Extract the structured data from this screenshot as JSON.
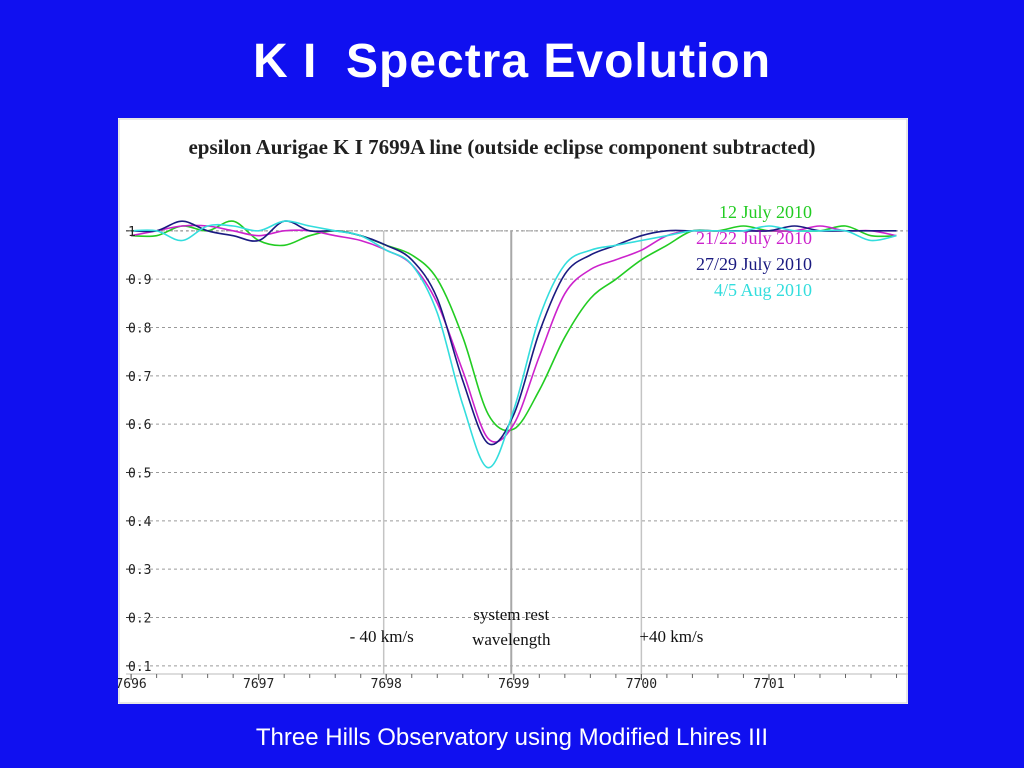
{
  "slide": {
    "title": "K I  Spectra Evolution",
    "footer": "Three Hills Observatory using Modified Lhires III"
  },
  "chart_data": {
    "type": "line",
    "title": "epsilon Aurigae K I 7699A line (outside eclipse component subtracted)",
    "xlabel": "",
    "ylabel": "",
    "xlim": [
      7695.96,
      7702.09
    ],
    "ylim": [
      0.05,
      1.13
    ],
    "x_ticks": [
      7696,
      7697,
      7698,
      7699,
      7700,
      7701
    ],
    "y_ticks": [
      0.1,
      0.2,
      0.3,
      0.4,
      0.5,
      0.6,
      0.7,
      0.8,
      0.9,
      1
    ],
    "grid": "horizontal dashed",
    "legend_position": "top-right",
    "reference_lines": [
      {
        "x": 7697.98,
        "label": "- 40 km/s"
      },
      {
        "x": 7698.98,
        "label_lines": [
          "system rest",
          "wavelength"
        ]
      },
      {
        "x": 7700.0,
        "label": "+40 km/s"
      }
    ],
    "series": [
      {
        "name": "12 July 2010",
        "color": "#22cc22",
        "x": [
          7696.0,
          7696.2,
          7696.4,
          7696.6,
          7696.8,
          7697.0,
          7697.2,
          7697.4,
          7697.6,
          7697.8,
          7698.0,
          7698.2,
          7698.4,
          7698.6,
          7698.8,
          7699.0,
          7699.2,
          7699.4,
          7699.6,
          7699.8,
          7700.0,
          7700.2,
          7700.4,
          7700.6,
          7700.8,
          7701.0,
          7701.2,
          7701.4,
          7701.6,
          7701.8,
          7702.0
        ],
        "values": [
          0.99,
          0.99,
          1.01,
          1.0,
          1.02,
          0.98,
          0.97,
          0.99,
          1.0,
          0.99,
          0.97,
          0.95,
          0.9,
          0.78,
          0.62,
          0.59,
          0.67,
          0.78,
          0.86,
          0.9,
          0.94,
          0.97,
          1.0,
          1.0,
          1.01,
          1.0,
          1.0,
          1.0,
          1.01,
          0.99,
          0.99
        ]
      },
      {
        "name": "21/22 July 2010",
        "color": "#cc22cc",
        "x": [
          7696.0,
          7696.2,
          7696.4,
          7696.6,
          7696.8,
          7697.0,
          7697.2,
          7697.4,
          7697.6,
          7697.8,
          7698.0,
          7698.2,
          7698.4,
          7698.6,
          7698.8,
          7699.0,
          7699.2,
          7699.4,
          7699.6,
          7699.8,
          7700.0,
          7700.2,
          7700.4,
          7700.6,
          7700.8,
          7701.0,
          7701.2,
          7701.4,
          7701.6,
          7701.8,
          7702.0
        ],
        "values": [
          0.99,
          1.0,
          1.01,
          1.01,
          1.0,
          0.99,
          1.0,
          1.0,
          0.99,
          0.98,
          0.96,
          0.93,
          0.85,
          0.71,
          0.57,
          0.6,
          0.74,
          0.87,
          0.92,
          0.94,
          0.96,
          0.99,
          1.0,
          1.0,
          1.0,
          1.0,
          1.0,
          1.01,
          1.0,
          1.0,
          0.99
        ]
      },
      {
        "name": "27/29 July 2010",
        "color": "#1a1a80",
        "x": [
          7696.0,
          7696.2,
          7696.4,
          7696.6,
          7696.8,
          7697.0,
          7697.2,
          7697.4,
          7697.6,
          7697.8,
          7698.0,
          7698.2,
          7698.4,
          7698.6,
          7698.8,
          7699.0,
          7699.2,
          7699.4,
          7699.6,
          7699.8,
          7700.0,
          7700.2,
          7700.4,
          7700.6,
          7700.8,
          7701.0,
          7701.2,
          7701.4,
          7701.6,
          7701.8,
          7702.0
        ],
        "values": [
          1.0,
          1.0,
          1.02,
          1.0,
          0.99,
          0.98,
          1.02,
          1.0,
          1.0,
          0.99,
          0.97,
          0.94,
          0.86,
          0.69,
          0.56,
          0.62,
          0.79,
          0.91,
          0.95,
          0.97,
          0.99,
          1.0,
          1.0,
          1.0,
          1.0,
          1.0,
          1.01,
          1.0,
          1.0,
          1.0,
          1.0
        ]
      },
      {
        "name": "4/5 Aug 2010",
        "color": "#33dddd",
        "x": [
          7696.0,
          7696.2,
          7696.4,
          7696.6,
          7696.8,
          7697.0,
          7697.2,
          7697.4,
          7697.6,
          7697.8,
          7698.0,
          7698.2,
          7698.4,
          7698.6,
          7698.8,
          7699.0,
          7699.2,
          7699.4,
          7699.6,
          7699.8,
          7700.0,
          7700.2,
          7700.4,
          7700.6,
          7700.8,
          7701.0,
          7701.2,
          7701.4,
          7701.6,
          7701.8,
          7702.0
        ],
        "values": [
          1.0,
          1.0,
          0.98,
          1.01,
          1.01,
          1.0,
          1.02,
          1.01,
          1.0,
          0.99,
          0.96,
          0.93,
          0.83,
          0.64,
          0.51,
          0.63,
          0.82,
          0.93,
          0.96,
          0.97,
          0.98,
          0.99,
          1.0,
          1.0,
          1.0,
          1.01,
          1.0,
          1.0,
          1.0,
          0.98,
          0.99
        ]
      }
    ]
  }
}
